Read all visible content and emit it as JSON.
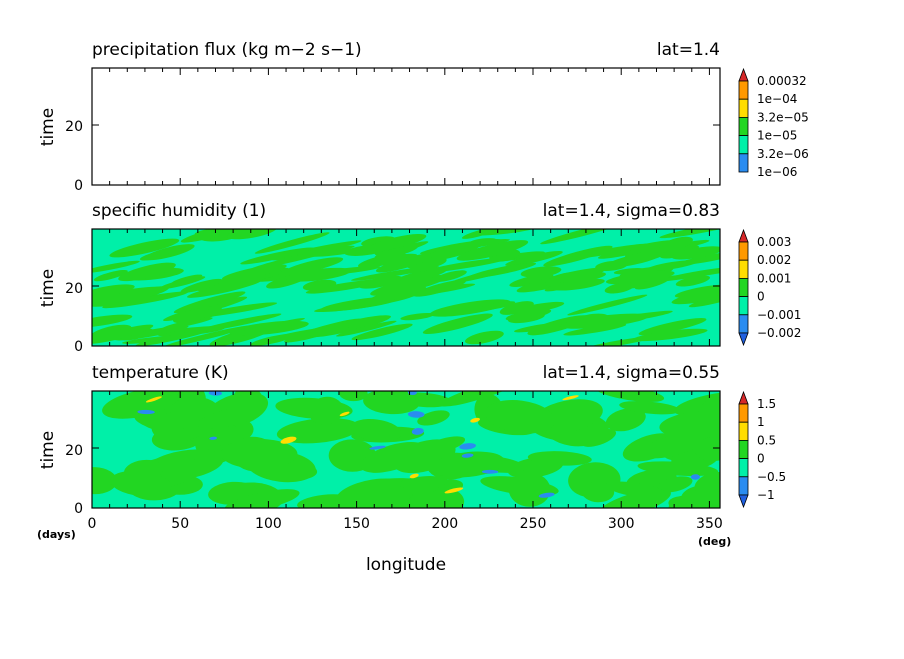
{
  "chart_data": [
    {
      "type": "heatmap",
      "title": "precipitation flux (kg m−2 s−1)",
      "subtitle": "lat=1.4",
      "ylabel": "time",
      "xlim": [
        0,
        356
      ],
      "ylim": [
        0,
        39
      ],
      "y_ticks": [
        "0",
        "20"
      ],
      "colorbar": {
        "labels": [
          "0.00032",
          "1e−04",
          "3.2e−05",
          "1e−05",
          "3.2e−06",
          "1e−06"
        ],
        "colors": [
          "#d62728",
          "#ff9900",
          "#ffdd00",
          "#22d622",
          "#00f0a8",
          "#2a8cf0"
        ]
      },
      "field": "empty"
    },
    {
      "type": "heatmap",
      "title": "specific humidity (1)",
      "subtitle": "lat=1.4, sigma=0.83",
      "ylabel": "time",
      "xlim": [
        0,
        356
      ],
      "ylim": [
        0,
        39
      ],
      "y_ticks": [
        "0",
        "20"
      ],
      "colorbar": {
        "labels": [
          "0.003",
          "0.002",
          "0.001",
          "0",
          "−0.001",
          "−0.002"
        ],
        "colors": [
          "#d62728",
          "#ff9900",
          "#ffdd00",
          "#22d622",
          "#00f0a8",
          "#2a8cf0",
          "#2060e0"
        ]
      },
      "field": "humidity"
    },
    {
      "type": "heatmap",
      "title": "temperature (K)",
      "subtitle": "lat=1.4, sigma=0.55",
      "ylabel": "time",
      "xlabel": "longitude",
      "x_unit": "(deg)",
      "y_unit": "(days)",
      "xlim": [
        0,
        356
      ],
      "ylim": [
        0,
        39
      ],
      "x_ticks": [
        "0",
        "50",
        "100",
        "150",
        "200",
        "250",
        "300",
        "350"
      ],
      "y_ticks": [
        "0",
        "20"
      ],
      "colorbar": {
        "labels": [
          "1.5",
          "1",
          "0.5",
          "0",
          "−0.5",
          "−1"
        ],
        "colors": [
          "#d62728",
          "#ff9900",
          "#ffdd00",
          "#22d622",
          "#00f0a8",
          "#2a8cf0",
          "#2060e0"
        ]
      },
      "field": "temperature"
    }
  ]
}
